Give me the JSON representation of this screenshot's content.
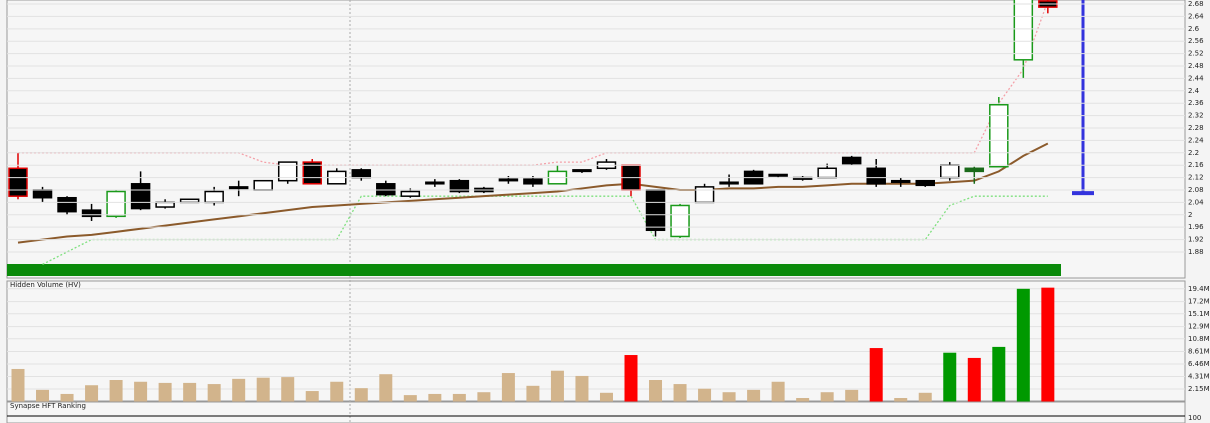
{
  "chart_data": [
    {
      "type": "candlestick",
      "open": [
        2.15,
        2.08,
        2.055,
        2.015,
        1.995,
        2.1,
        2.025,
        2.04,
        2.04,
        2.085,
        2.08,
        2.11,
        2.17,
        2.1,
        2.145,
        2.1,
        2.06,
        2.1,
        2.11,
        2.085,
        2.11,
        2.115,
        2.1,
        2.14,
        2.15,
        2.16,
        2.08,
        1.93,
        2.04,
        2.1,
        2.14,
        2.13,
        2.115,
        2.12,
        2.185,
        2.15,
        2.105,
        2.11,
        2.12,
        2.14,
        2.155,
        2.5,
        2.69
      ],
      "high": [
        2.2,
        2.09,
        2.06,
        2.035,
        2.08,
        2.14,
        2.05,
        2.05,
        2.09,
        2.11,
        2.11,
        2.17,
        2.18,
        2.15,
        2.15,
        2.11,
        2.085,
        2.115,
        2.115,
        2.09,
        2.125,
        2.125,
        2.16,
        2.145,
        2.18,
        2.16,
        2.08,
        2.035,
        2.1,
        2.13,
        2.145,
        2.13,
        2.125,
        2.165,
        2.19,
        2.18,
        2.12,
        2.11,
        2.17,
        2.155,
        2.38,
        2.72,
        2.7
      ],
      "low": [
        2.05,
        2.04,
        2.0,
        1.98,
        1.99,
        2.015,
        2.02,
        2.04,
        2.03,
        2.06,
        2.08,
        2.1,
        2.1,
        2.1,
        2.11,
        2.06,
        2.055,
        2.09,
        2.07,
        2.07,
        2.1,
        2.09,
        2.1,
        2.135,
        2.145,
        2.06,
        1.93,
        1.925,
        2.04,
        2.09,
        2.1,
        2.12,
        2.11,
        2.12,
        2.16,
        2.09,
        2.09,
        2.09,
        2.11,
        2.1,
        2.155,
        2.44,
        2.65
      ],
      "close": [
        2.06,
        2.055,
        2.01,
        1.995,
        2.075,
        2.02,
        2.04,
        2.05,
        2.075,
        2.09,
        2.11,
        2.17,
        2.1,
        2.14,
        2.12,
        2.065,
        2.075,
        2.105,
        2.075,
        2.075,
        2.115,
        2.1,
        2.14,
        2.145,
        2.17,
        2.08,
        1.95,
        2.03,
        2.09,
        2.105,
        2.1,
        2.125,
        2.12,
        2.15,
        2.165,
        2.1,
        2.11,
        2.095,
        2.16,
        2.15,
        2.355,
        2.7,
        2.67
      ],
      "edge_colors": [
        "#e00000",
        "#000",
        "#000",
        "#000",
        "#1a9a1a",
        "#000",
        "#000",
        "#000",
        "#000",
        "#000",
        "#000",
        "#000",
        "#e00000",
        "#000",
        "#000",
        "#000",
        "#000",
        "#000",
        "#000",
        "#000",
        "#000",
        "#000",
        "#1a9a1a",
        "#000",
        "#000",
        "#e00000",
        "#000",
        "#1a9a1a",
        "#000",
        "#000",
        "#000",
        "#000",
        "#000",
        "#000",
        "#000",
        "#000",
        "#000",
        "#000",
        "#000",
        "#1a6a1a",
        "#1a9a1a",
        "#1a9a1a",
        "#e00000"
      ],
      "body_colors": [
        "#000",
        "#000",
        "#000",
        "#000",
        "#fff",
        "#000",
        "#fff",
        "#fff",
        "#fff",
        "#000",
        "#fff",
        "#fff",
        "#000",
        "#fff",
        "#000",
        "#000",
        "#fff",
        "#000",
        "#000",
        "#000",
        "#000",
        "#000",
        "#fff",
        "#000",
        "#fff",
        "#000",
        "#000",
        "#fff",
        "#fff",
        "#000",
        "#000",
        "#000",
        "#000",
        "#fff",
        "#000",
        "#000",
        "#000",
        "#000",
        "#fff",
        "#1a6a1a",
        "#fff",
        "#fff",
        "#000"
      ],
      "moving_average": {
        "color": "#8b5a2b",
        "values": [
          1.91,
          1.92,
          1.93,
          1.935,
          1.945,
          1.955,
          1.965,
          1.975,
          1.985,
          1.995,
          2.005,
          2.015,
          2.025,
          2.03,
          2.035,
          2.04,
          2.045,
          2.05,
          2.055,
          2.06,
          2.065,
          2.07,
          2.075,
          2.085,
          2.095,
          2.1,
          2.09,
          2.08,
          2.08,
          2.085,
          2.085,
          2.09,
          2.09,
          2.095,
          2.1,
          2.1,
          2.1,
          2.1,
          2.105,
          2.11,
          2.14,
          2.19,
          2.23
        ]
      },
      "upper_band": {
        "color": "#f4a0a8",
        "values": [
          2.2,
          2.2,
          2.2,
          2.2,
          2.2,
          2.2,
          2.2,
          2.2,
          2.2,
          2.2,
          2.17,
          2.16,
          2.16,
          2.16,
          2.16,
          2.16,
          2.16,
          2.16,
          2.16,
          2.16,
          2.16,
          2.16,
          2.17,
          2.17,
          2.2,
          2.2,
          2.2,
          2.2,
          2.2,
          2.2,
          2.2,
          2.2,
          2.2,
          2.2,
          2.2,
          2.2,
          2.2,
          2.2,
          2.2,
          2.2,
          2.36,
          2.47,
          2.69
        ]
      },
      "lower_band": {
        "color": "#7ee07e",
        "values": [
          null,
          1.84,
          1.88,
          1.92,
          1.92,
          1.92,
          1.92,
          1.92,
          1.92,
          1.92,
          1.92,
          1.92,
          1.92,
          1.92,
          2.06,
          2.06,
          2.06,
          2.06,
          2.06,
          2.06,
          2.06,
          2.06,
          2.06,
          2.06,
          2.06,
          2.06,
          1.92,
          1.92,
          1.92,
          1.92,
          1.92,
          1.92,
          1.92,
          1.92,
          1.92,
          1.92,
          1.92,
          1.92,
          2.03,
          2.06,
          2.06,
          2.06,
          2.06
        ]
      },
      "price_marker": {
        "value": 2.07,
        "color": "#3333dd"
      },
      "ylim": [
        1.796,
        2.693
      ],
      "yticks": [
        2.68,
        2.64,
        2.6,
        2.56,
        2.52,
        2.48,
        2.44,
        2.4,
        2.36,
        2.32,
        2.28,
        2.24,
        2.2,
        2.16,
        2.12,
        2.08,
        2.04,
        2.0,
        1.96,
        1.92,
        1.88
      ],
      "grid": true
    },
    {
      "type": "bar",
      "title": "Hidden Volume (HV)",
      "values": [
        5600000,
        2000000,
        1300000,
        2800000,
        3700000,
        3400000,
        3200000,
        3200000,
        3000000,
        3900000,
        4100000,
        4200000,
        1800000,
        3400000,
        2300000,
        4700000,
        1100000,
        1300000,
        1300000,
        1600000,
        4900000,
        2700000,
        5300000,
        4400000,
        1500000,
        8000000,
        3700000,
        3000000,
        2200000,
        1600000,
        2000000,
        3400000,
        600000,
        1600000,
        2000000,
        9200000,
        600000,
        1500000,
        8400000,
        7500000,
        9400000,
        19400000,
        19600000
      ],
      "colors": [
        "#d2b48c",
        "#d2b48c",
        "#d2b48c",
        "#d2b48c",
        "#d2b48c",
        "#d2b48c",
        "#d2b48c",
        "#d2b48c",
        "#d2b48c",
        "#d2b48c",
        "#d2b48c",
        "#d2b48c",
        "#d2b48c",
        "#d2b48c",
        "#d2b48c",
        "#d2b48c",
        "#d2b48c",
        "#d2b48c",
        "#d2b48c",
        "#d2b48c",
        "#d2b48c",
        "#d2b48c",
        "#d2b48c",
        "#d2b48c",
        "#d2b48c",
        "#ff0000",
        "#d2b48c",
        "#d2b48c",
        "#d2b48c",
        "#d2b48c",
        "#d2b48c",
        "#d2b48c",
        "#d2b48c",
        "#d2b48c",
        "#d2b48c",
        "#ff0000",
        "#d2b48c",
        "#d2b48c",
        "#009900",
        "#ff0000",
        "#009900",
        "#009900",
        "#ff0000"
      ],
      "ylim": [
        0,
        20400000
      ],
      "yticks": [
        {
          "value": 19400000,
          "label": "19.4M"
        },
        {
          "value": 17200000,
          "label": "17.2M"
        },
        {
          "value": 15100000,
          "label": "15.1M"
        },
        {
          "value": 12900000,
          "label": "12.9M"
        },
        {
          "value": 10800000,
          "label": "10.8M"
        },
        {
          "value": 8610000,
          "label": "8.61M"
        },
        {
          "value": 6460000,
          "label": "6.46M"
        },
        {
          "value": 4310000,
          "label": "4.31M"
        },
        {
          "value": 2150000,
          "label": "2.15M"
        }
      ],
      "grid": true
    },
    {
      "type": "indicator",
      "title": "Synapse HFT Ranking",
      "yticks": [
        100
      ]
    }
  ]
}
